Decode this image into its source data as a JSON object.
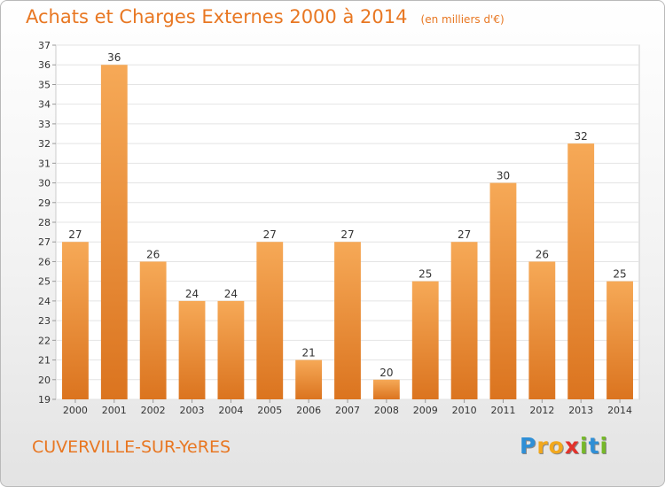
{
  "header": {
    "title": "Achats et Charges Externes 2000 à 2014",
    "subtitle": "(en milliers d'€)"
  },
  "footer": {
    "place": "CUVERVILLE-SUR-YeRES",
    "brand_letters": [
      "P",
      "r",
      "o",
      "x",
      "i",
      "t",
      "i"
    ],
    "brand_colors": [
      "#2f8fd6",
      "#f2a81d",
      "#f2a81d",
      "#e2322b",
      "#76b82a",
      "#2f8fd6",
      "#76b82a"
    ]
  },
  "chart_data": {
    "type": "bar",
    "categories": [
      "2000",
      "2001",
      "2002",
      "2003",
      "2004",
      "2005",
      "2006",
      "2007",
      "2008",
      "2009",
      "2010",
      "2011",
      "2012",
      "2013",
      "2014"
    ],
    "values": [
      27,
      36,
      26,
      24,
      24,
      27,
      21,
      27,
      20,
      25,
      27,
      30,
      26,
      32,
      25
    ],
    "ylim": [
      19,
      37
    ],
    "yticks": [
      19,
      20,
      21,
      22,
      23,
      24,
      25,
      26,
      27,
      28,
      29,
      30,
      31,
      32,
      33,
      34,
      35,
      36,
      37
    ],
    "grid": true,
    "bar_color_light": "#f6a957",
    "bar_color_dark": "#db741f"
  }
}
